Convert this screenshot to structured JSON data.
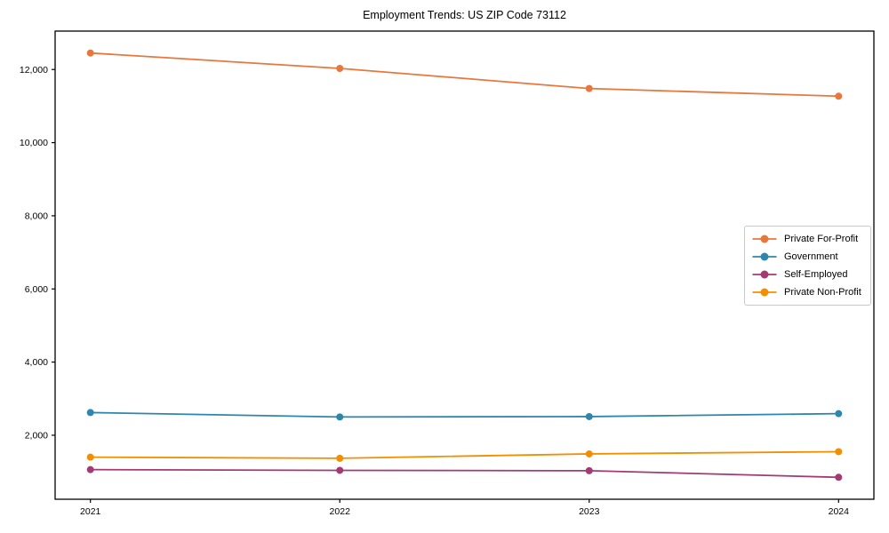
{
  "title": "Employment Trends: US ZIP Code 73112",
  "chart_data": {
    "type": "line",
    "x": [
      2021,
      2022,
      2023,
      2024
    ],
    "x_labels": [
      "2021",
      "2022",
      "2023",
      "2024"
    ],
    "series": [
      {
        "name": "Private For-Profit",
        "color": "#E8773D",
        "values": [
          12450,
          12030,
          11480,
          11270
        ]
      },
      {
        "name": "Government",
        "color": "#2E86AB",
        "values": [
          2620,
          2500,
          2510,
          2590
        ]
      },
      {
        "name": "Self-Employed",
        "color": "#A23B72",
        "values": [
          1060,
          1040,
          1030,
          850
        ]
      },
      {
        "name": "Private Non-Profit",
        "color": "#F18F01",
        "values": [
          1400,
          1370,
          1490,
          1550
        ]
      }
    ],
    "ylim": [
      250,
      13050
    ],
    "yticks": [
      2000,
      4000,
      6000,
      8000,
      10000,
      12000
    ],
    "ytick_labels": [
      "2,000",
      "4,000",
      "6,000",
      "8,000",
      "10,000",
      "12,000"
    ],
    "grid": false,
    "marker": "circle",
    "legend_position": "center-right",
    "axis_color": "#000000"
  }
}
